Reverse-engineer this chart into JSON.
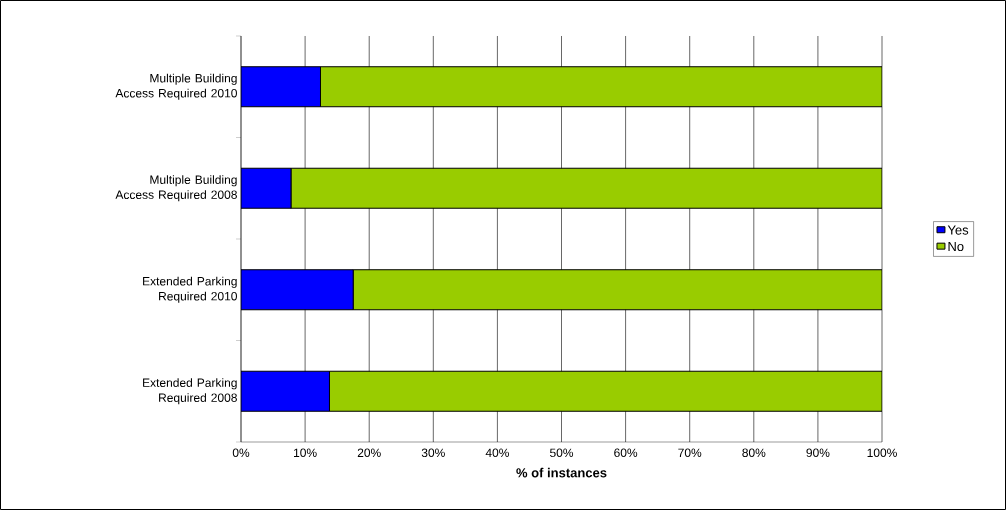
{
  "chart_data": {
    "type": "bar",
    "orientation": "horizontal",
    "stacked": true,
    "xlabel": "% of instances",
    "categories": [
      "Multiple Building Access Required 2010",
      "Multiple Building Access Required 2008",
      "Extended Parking Required 2010",
      "Extended Parking Required 2008"
    ],
    "series": [
      {
        "name": "Yes",
        "color": "#0000ff",
        "values": [
          12.4,
          7.8,
          17.5,
          13.8
        ]
      },
      {
        "name": "No",
        "color": "#99cc00",
        "values": [
          87.6,
          92.2,
          82.5,
          86.2
        ]
      }
    ],
    "xlim": [
      0,
      100
    ],
    "xticks": [
      {
        "value": 0,
        "label": "0%"
      },
      {
        "value": 10,
        "label": "10%"
      },
      {
        "value": 20,
        "label": "20%"
      },
      {
        "value": 30,
        "label": "30%"
      },
      {
        "value": 40,
        "label": "40%"
      },
      {
        "value": 50,
        "label": "50%"
      },
      {
        "value": 60,
        "label": "60%"
      },
      {
        "value": 70,
        "label": "70%"
      },
      {
        "value": 80,
        "label": "80%"
      },
      {
        "value": 90,
        "label": "90%"
      },
      {
        "value": 100,
        "label": "100%"
      }
    ],
    "grid": "x",
    "legend": "right"
  }
}
